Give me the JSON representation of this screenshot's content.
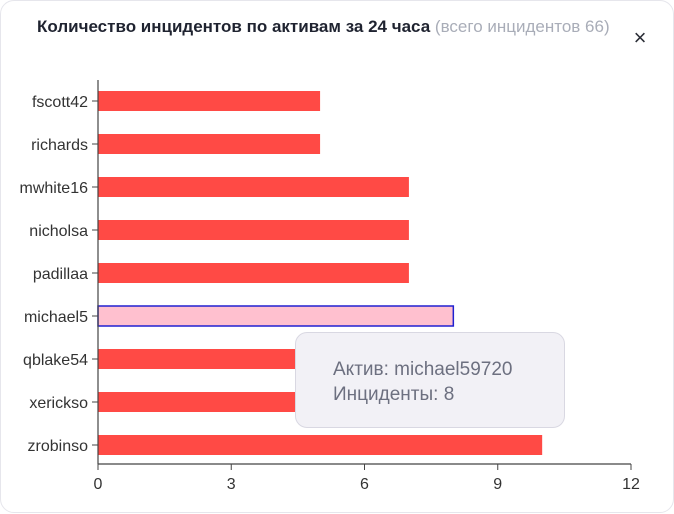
{
  "header": {
    "title": "Количество инцидентов по активам за 24 часа",
    "subtitle": "(всего инцидентов 66)",
    "close_label": "×"
  },
  "colors": {
    "bar": "#ff4a45",
    "bar_highlight": "#ffc0cf",
    "bar_highlight_border": "#2020d0",
    "axis": "#444444"
  },
  "tooltip": {
    "asset_line": "Актив: michael59720",
    "incidents_line": "Инциденты: 8"
  },
  "chart_data": {
    "type": "bar",
    "orientation": "horizontal",
    "categories": [
      "fscott42",
      "richards",
      "mwhite16",
      "nicholsa",
      "padillaa",
      "michael5",
      "qblake54",
      "xerickso",
      "zrobinso"
    ],
    "values": [
      5,
      5,
      7,
      7,
      7,
      8,
      6,
      8,
      10
    ],
    "highlighted_index": 5,
    "xlim": [
      0,
      12
    ],
    "xticks": [
      0,
      3,
      6,
      9,
      12
    ],
    "grid": false
  }
}
